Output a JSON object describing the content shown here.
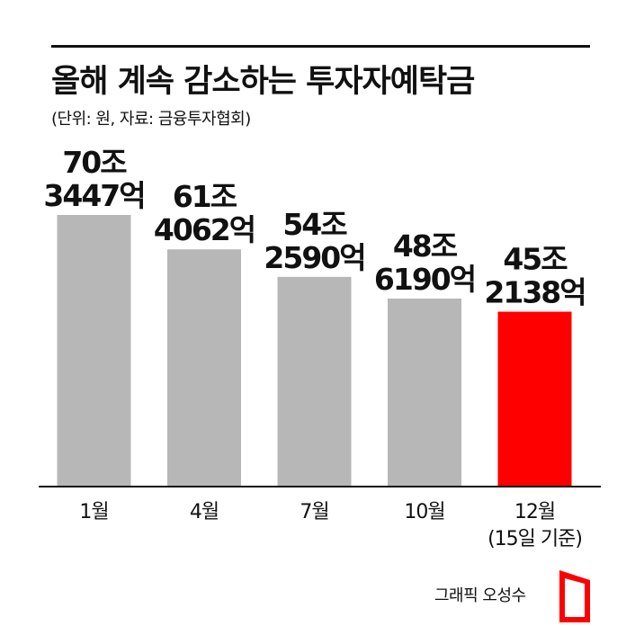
{
  "header": {
    "title": "올해 계속 감소하는 투자자예탁금",
    "subtitle": "(단위: 원, 자료: 금융투자협회)"
  },
  "footer": {
    "credit": "그래픽 오성수"
  },
  "colors": {
    "bar": "#b7b7b7",
    "highlight": "#ff0000",
    "text": "#111111",
    "baseline": "#111111"
  },
  "chart_data": {
    "type": "bar",
    "title": "올해 계속 감소하는 투자자예탁금",
    "categories": [
      "1월",
      "4월",
      "7월",
      "10월",
      "12월"
    ],
    "category_notes": [
      "",
      "",
      "",
      "",
      "(15일 기준)"
    ],
    "values": [
      703447,
      614062,
      542590,
      486190,
      452138
    ],
    "value_unit": "억 원",
    "value_labels": [
      [
        "70조",
        "3447억"
      ],
      [
        "61조",
        "4062억"
      ],
      [
        "54조",
        "2590억"
      ],
      [
        "48조",
        "6190억"
      ],
      [
        "45조",
        "2138억"
      ]
    ],
    "highlight_index": 4,
    "ylim": [
      0,
      703447
    ],
    "grid": false,
    "legend": "none"
  }
}
